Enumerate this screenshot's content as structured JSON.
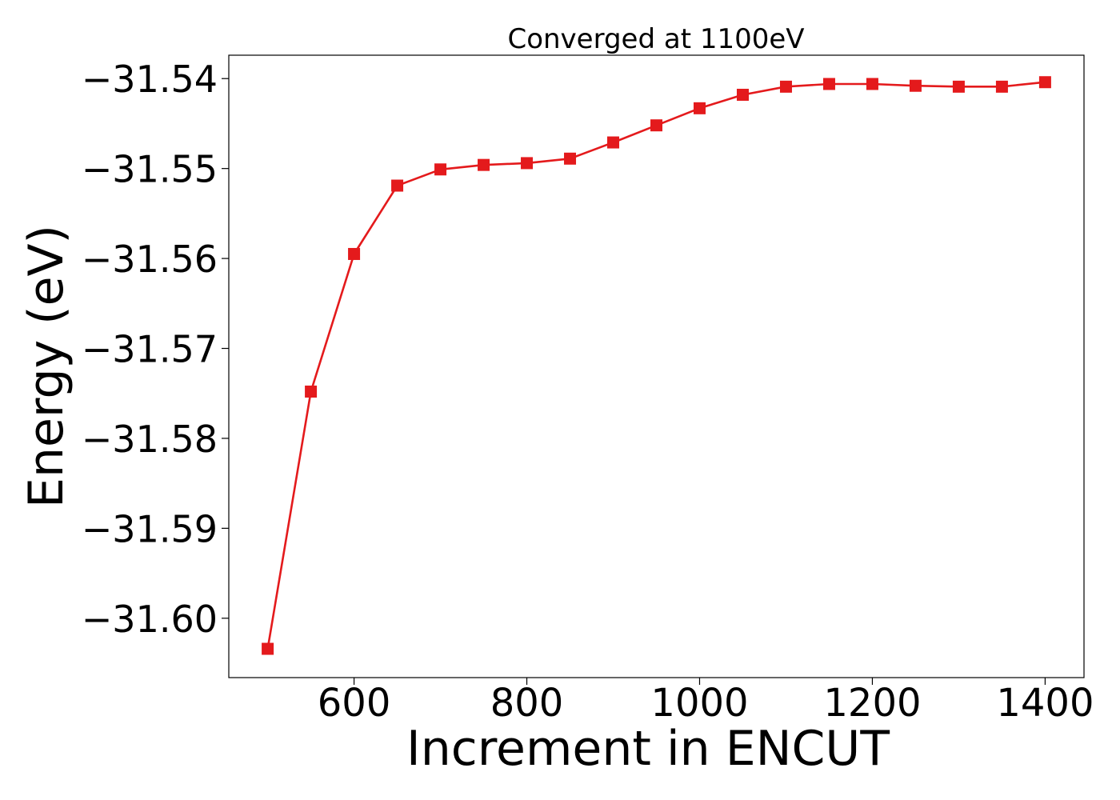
{
  "chart_data": {
    "type": "line",
    "title": "Converged at 1100eV",
    "xlabel": "Increment in ENCUT",
    "ylabel": "Energy (eV)",
    "x": [
      500,
      550,
      600,
      650,
      700,
      750,
      800,
      850,
      900,
      950,
      1000,
      1050,
      1100,
      1150,
      1200,
      1250,
      1300,
      1350,
      1400
    ],
    "series": [
      {
        "values": [
          -31.6034,
          -31.5748,
          -31.5595,
          -31.5519,
          -31.5501,
          -31.5496,
          -31.5494,
          -31.5489,
          -31.5471,
          -31.5452,
          -31.5433,
          -31.5418,
          -31.5409,
          -31.5406,
          -31.5406,
          -31.5408,
          -31.5409,
          -31.5409,
          -31.5404
        ],
        "color": "#e41a1c",
        "marker": "square"
      }
    ],
    "xlim": [
      455,
      1445
    ],
    "ylim": [
      -31.6066,
      -31.5374
    ],
    "x_ticks": [
      600,
      800,
      1000,
      1200,
      1400
    ],
    "x_tick_labels": [
      "600",
      "800",
      "1000",
      "1200",
      "1400"
    ],
    "y_ticks": [
      -31.6,
      -31.59,
      -31.58,
      -31.57,
      -31.56,
      -31.55,
      -31.54
    ],
    "y_tick_labels": [
      "−31.60",
      "−31.59",
      "−31.58",
      "−31.57",
      "−31.56",
      "−31.55",
      "−31.54"
    ],
    "grid": false,
    "legend": "none"
  }
}
